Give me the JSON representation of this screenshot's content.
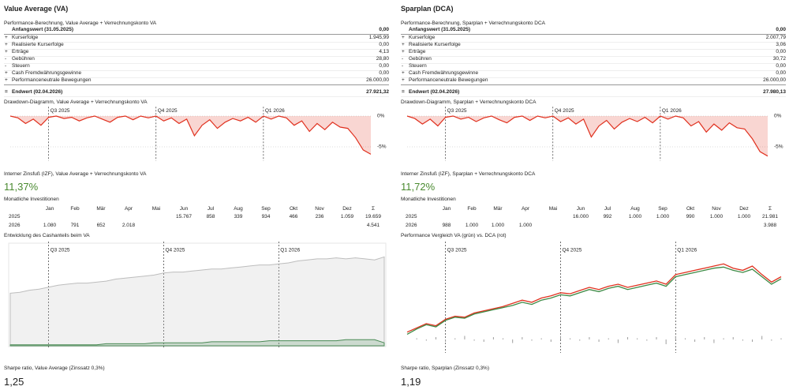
{
  "panels": [
    {
      "title": "Value Average (VA)",
      "performance": {
        "title": "Performance-Berechnung, Value Average + Verrechnungskonto VA",
        "rows": [
          {
            "label": "Anfangswert (31.05.2025)",
            "value": "0,00"
          },
          {
            "sign": "+",
            "label": "Kurserfolge",
            "value": "1.945,99"
          },
          {
            "sign": "+",
            "label": "Realisierte Kurserfolge",
            "value": "0,00"
          },
          {
            "sign": "+",
            "label": "Erträge",
            "value": "4,13"
          },
          {
            "sign": "-",
            "label": "Gebühren",
            "value": "28,80"
          },
          {
            "sign": "-",
            "label": "Steuern",
            "value": "0,00"
          },
          {
            "sign": "+",
            "label": "Cash Fremdwährungsgewinne",
            "value": "0,00"
          },
          {
            "sign": "+",
            "label": "Performanceneutrale Bewegungen",
            "value": "26.000,00"
          },
          {
            "sign": "=",
            "label": "Endwert (02.04.2026)",
            "value": "27.921,32"
          }
        ]
      },
      "irr": {
        "label": "Interner Zinsfuß (IZF), Value Average + Verrechnungskonto VA",
        "value": "11,37%"
      },
      "monthly": {
        "title": "Monatliche Investitionen",
        "columns": [
          null,
          "Jan",
          "Feb",
          "Mär",
          "Apr",
          "Mai",
          "Jun",
          "Jul",
          "Aug",
          "Sep",
          "Okt",
          "Nov",
          "Dez",
          "Σ"
        ],
        "rows": [
          [
            "2025",
            null,
            null,
            null,
            null,
            null,
            "15.767",
            "858",
            "339",
            "934",
            "466",
            "236",
            "1.059",
            "19.659"
          ],
          [
            "2026",
            "1.080",
            "791",
            "652",
            "2.018",
            null,
            null,
            null,
            null,
            null,
            null,
            null,
            null,
            "4.541"
          ]
        ]
      },
      "sharpe": {
        "label": "Sharpe ratio, Value Average (Zinssatz 0,3%)",
        "value": "1,25"
      }
    },
    {
      "title": "Sparplan (DCA)",
      "performance": {
        "title": "Performance-Berechnung, Sparplan + Verrechnungskonto DCA",
        "rows": [
          {
            "label": "Anfangswert (31.05.2025)",
            "value": "0,00"
          },
          {
            "sign": "+",
            "label": "Kurserfolge",
            "value": "2.007,79"
          },
          {
            "sign": "+",
            "label": "Realisierte Kurserfolge",
            "value": "3,06"
          },
          {
            "sign": "+",
            "label": "Erträge",
            "value": "0,00"
          },
          {
            "sign": "-",
            "label": "Gebühren",
            "value": "30,72"
          },
          {
            "sign": "-",
            "label": "Steuern",
            "value": "0,00"
          },
          {
            "sign": "+",
            "label": "Cash Fremdwährungsgewinne",
            "value": "0,00"
          },
          {
            "sign": "+",
            "label": "Performanceneutrale Bewegungen",
            "value": "26.000,00"
          },
          {
            "sign": "=",
            "label": "Endwert (02.04.2026)",
            "value": "27.980,13"
          }
        ]
      },
      "irr": {
        "label": "Interner Zinsfuß (IZF), Sparplan + Verrechnungskonto DCA",
        "value": "11,72%"
      },
      "monthly": {
        "title": "Monatliche Investitionen",
        "columns": [
          null,
          "Jan",
          "Feb",
          "Mär",
          "Apr",
          "Mai",
          "Jun",
          "Jul",
          "Aug",
          "Sep",
          "Okt",
          "Nov",
          "Dez",
          "Σ"
        ],
        "rows": [
          [
            "2025",
            null,
            null,
            null,
            null,
            null,
            "16.000",
            "992",
            "1.000",
            "1.000",
            "990",
            "1.000",
            "1.000",
            "21.981"
          ],
          [
            "2026",
            "988",
            "1.000",
            "1.000",
            "1.000",
            null,
            null,
            null,
            null,
            null,
            null,
            null,
            null,
            "3.988"
          ]
        ]
      },
      "sharpe": {
        "label": "Sharpe ratio, Sparplan (Zinssatz 0,3%)",
        "value": "1,19"
      }
    }
  ],
  "chart_data": [
    {
      "type": "drawdown",
      "title": "Drawdown-Diagramm, Value Average + Verrechnungskonto VA",
      "categories": [
        null,
        null,
        null,
        null,
        null,
        "Q3 2025",
        null,
        null,
        null,
        null,
        null,
        null,
        null,
        null,
        null,
        null,
        null,
        null,
        null,
        "Q4 2025",
        null,
        null,
        null,
        null,
        null,
        null,
        null,
        null,
        null,
        null,
        null,
        null,
        null,
        "Q1 2026",
        null,
        null,
        null,
        null,
        null,
        null,
        null,
        null,
        null,
        null,
        null,
        null,
        null,
        null
      ],
      "series": [
        {
          "color": "#e0301e",
          "values": [
            0,
            -0.3,
            -1.2,
            -0.5,
            -1.5,
            -0.2,
            0,
            -0.4,
            -0.2,
            -0.8,
            -0.3,
            0,
            -0.5,
            -1.0,
            -0.2,
            0,
            -0.6,
            0,
            -0.3,
            0,
            -0.8,
            -0.3,
            -1.2,
            -0.5,
            -3.2,
            -1.5,
            -0.6,
            -2.0,
            -1.0,
            -0.4,
            -0.8,
            -0.2,
            -1.0,
            0,
            -0.5,
            0,
            -0.3,
            -1.5,
            -0.8,
            -2.5,
            -1.2,
            -2.2,
            -1.0,
            -1.8,
            -2.0,
            -3.5,
            -5.5,
            -6.2
          ]
        }
      ],
      "ylim": [
        -7,
        1
      ],
      "yticks": [
        {
          "value": 0,
          "label": "0%"
        },
        {
          "value": -5,
          "label": "-5%"
        }
      ]
    },
    {
      "type": "area",
      "title": "Entwicklung des Cashanteils beim VA",
      "categories": [
        null,
        null,
        null,
        null,
        "Q3 2025",
        null,
        null,
        null,
        null,
        null,
        null,
        null,
        null,
        null,
        null,
        null,
        "Q4 2025",
        null,
        null,
        null,
        null,
        null,
        null,
        null,
        null,
        null,
        null,
        null,
        "Q1 2026",
        null,
        null,
        null,
        null,
        null,
        null,
        null,
        null,
        null,
        null,
        null
      ],
      "series": [
        {
          "color": "#bdbdbd",
          "values": [
            52,
            53,
            55,
            56,
            58,
            60,
            61,
            62,
            62,
            63,
            64,
            66,
            67,
            68,
            69,
            70,
            72,
            73,
            73,
            74,
            75,
            76,
            76,
            77,
            78,
            79,
            80,
            80,
            81,
            82,
            84,
            85,
            86,
            86,
            87,
            86,
            87,
            86,
            85,
            88
          ]
        },
        {
          "color": "#4a8a55",
          "values": [
            1,
            1,
            1,
            1,
            1,
            1,
            1,
            1,
            1,
            1,
            2,
            2,
            2,
            2,
            2,
            3,
            3,
            3,
            3,
            3,
            3,
            4,
            4,
            4,
            4,
            4,
            4,
            5,
            5,
            5,
            5,
            5,
            5,
            5,
            5,
            6,
            6,
            6,
            6,
            3
          ]
        }
      ],
      "ylim": [
        0,
        100
      ]
    },
    {
      "type": "drawdown",
      "title": "Drawdown-Diagramm, Sparplan + Verrechnungskonto DCA",
      "categories": [
        null,
        null,
        null,
        null,
        null,
        "Q3 2025",
        null,
        null,
        null,
        null,
        null,
        null,
        null,
        null,
        null,
        null,
        null,
        null,
        null,
        "Q4 2025",
        null,
        null,
        null,
        null,
        null,
        null,
        null,
        null,
        null,
        null,
        null,
        null,
        null,
        "Q1 2026",
        null,
        null,
        null,
        null,
        null,
        null,
        null,
        null,
        null,
        null,
        null,
        null,
        null,
        null
      ],
      "series": [
        {
          "color": "#e0301e",
          "values": [
            0,
            -0.4,
            -1.3,
            -0.5,
            -1.6,
            -0.2,
            0,
            -0.5,
            -0.2,
            -0.9,
            -0.3,
            0,
            -0.6,
            -1.1,
            -0.2,
            0,
            -0.7,
            0,
            -0.3,
            0,
            -0.9,
            -0.3,
            -1.3,
            -0.5,
            -3.4,
            -1.6,
            -0.7,
            -2.1,
            -1.0,
            -0.4,
            -0.9,
            -0.2,
            -1.1,
            0,
            -0.5,
            0,
            -0.3,
            -1.6,
            -0.9,
            -2.6,
            -1.3,
            -2.3,
            -1.1,
            -1.9,
            -2.1,
            -3.7,
            -5.8,
            -6.5
          ]
        }
      ],
      "ylim": [
        -7,
        1
      ],
      "yticks": [
        {
          "value": 0,
          "label": "0%"
        },
        {
          "value": -5,
          "label": "-5%"
        }
      ]
    },
    {
      "type": "comparison",
      "title": "Performance Vergleich VA (grün) vs. DCA (rot)",
      "categories": [
        null,
        null,
        null,
        null,
        "Q3 2025",
        null,
        null,
        null,
        null,
        null,
        null,
        null,
        null,
        null,
        null,
        null,
        "Q4 2025",
        null,
        null,
        null,
        null,
        null,
        null,
        null,
        null,
        null,
        null,
        null,
        "Q1 2026",
        null,
        null,
        null,
        null,
        null,
        null,
        null,
        null,
        null,
        null,
        null
      ],
      "series": [
        {
          "color": "#e0301e",
          "values": [
            18,
            22,
            26,
            24,
            30,
            33,
            32,
            36,
            38,
            40,
            42,
            45,
            48,
            46,
            50,
            52,
            55,
            54,
            57,
            60,
            58,
            61,
            63,
            60,
            62,
            64,
            66,
            63,
            72,
            74,
            76,
            78,
            80,
            82,
            78,
            76,
            80,
            72,
            65,
            70
          ]
        },
        {
          "color": "#3d8a45",
          "values": [
            16,
            21,
            25,
            23,
            29,
            32,
            31,
            35,
            37,
            39,
            41,
            43,
            46,
            44,
            48,
            50,
            53,
            52,
            55,
            58,
            56,
            59,
            61,
            58,
            60,
            62,
            64,
            61,
            70,
            72,
            74,
            76,
            78,
            79,
            76,
            74,
            77,
            70,
            63,
            68
          ]
        },
        {
          "color": "#9e9e9e",
          "axis": "y2",
          "values": [
            0,
            1,
            -1,
            2,
            -2,
            1,
            3,
            -1,
            -2,
            2,
            1,
            -3,
            2,
            -1,
            1,
            -2,
            3,
            1,
            -1,
            2,
            -2,
            1,
            -3,
            2,
            1,
            -1,
            2,
            -4,
            3,
            1,
            -2,
            2,
            -3,
            1,
            2,
            -1,
            -2,
            3,
            -1,
            1
          ]
        }
      ],
      "ylim": [
        0,
        100
      ],
      "y2lim": [
        -10,
        10
      ]
    }
  ]
}
